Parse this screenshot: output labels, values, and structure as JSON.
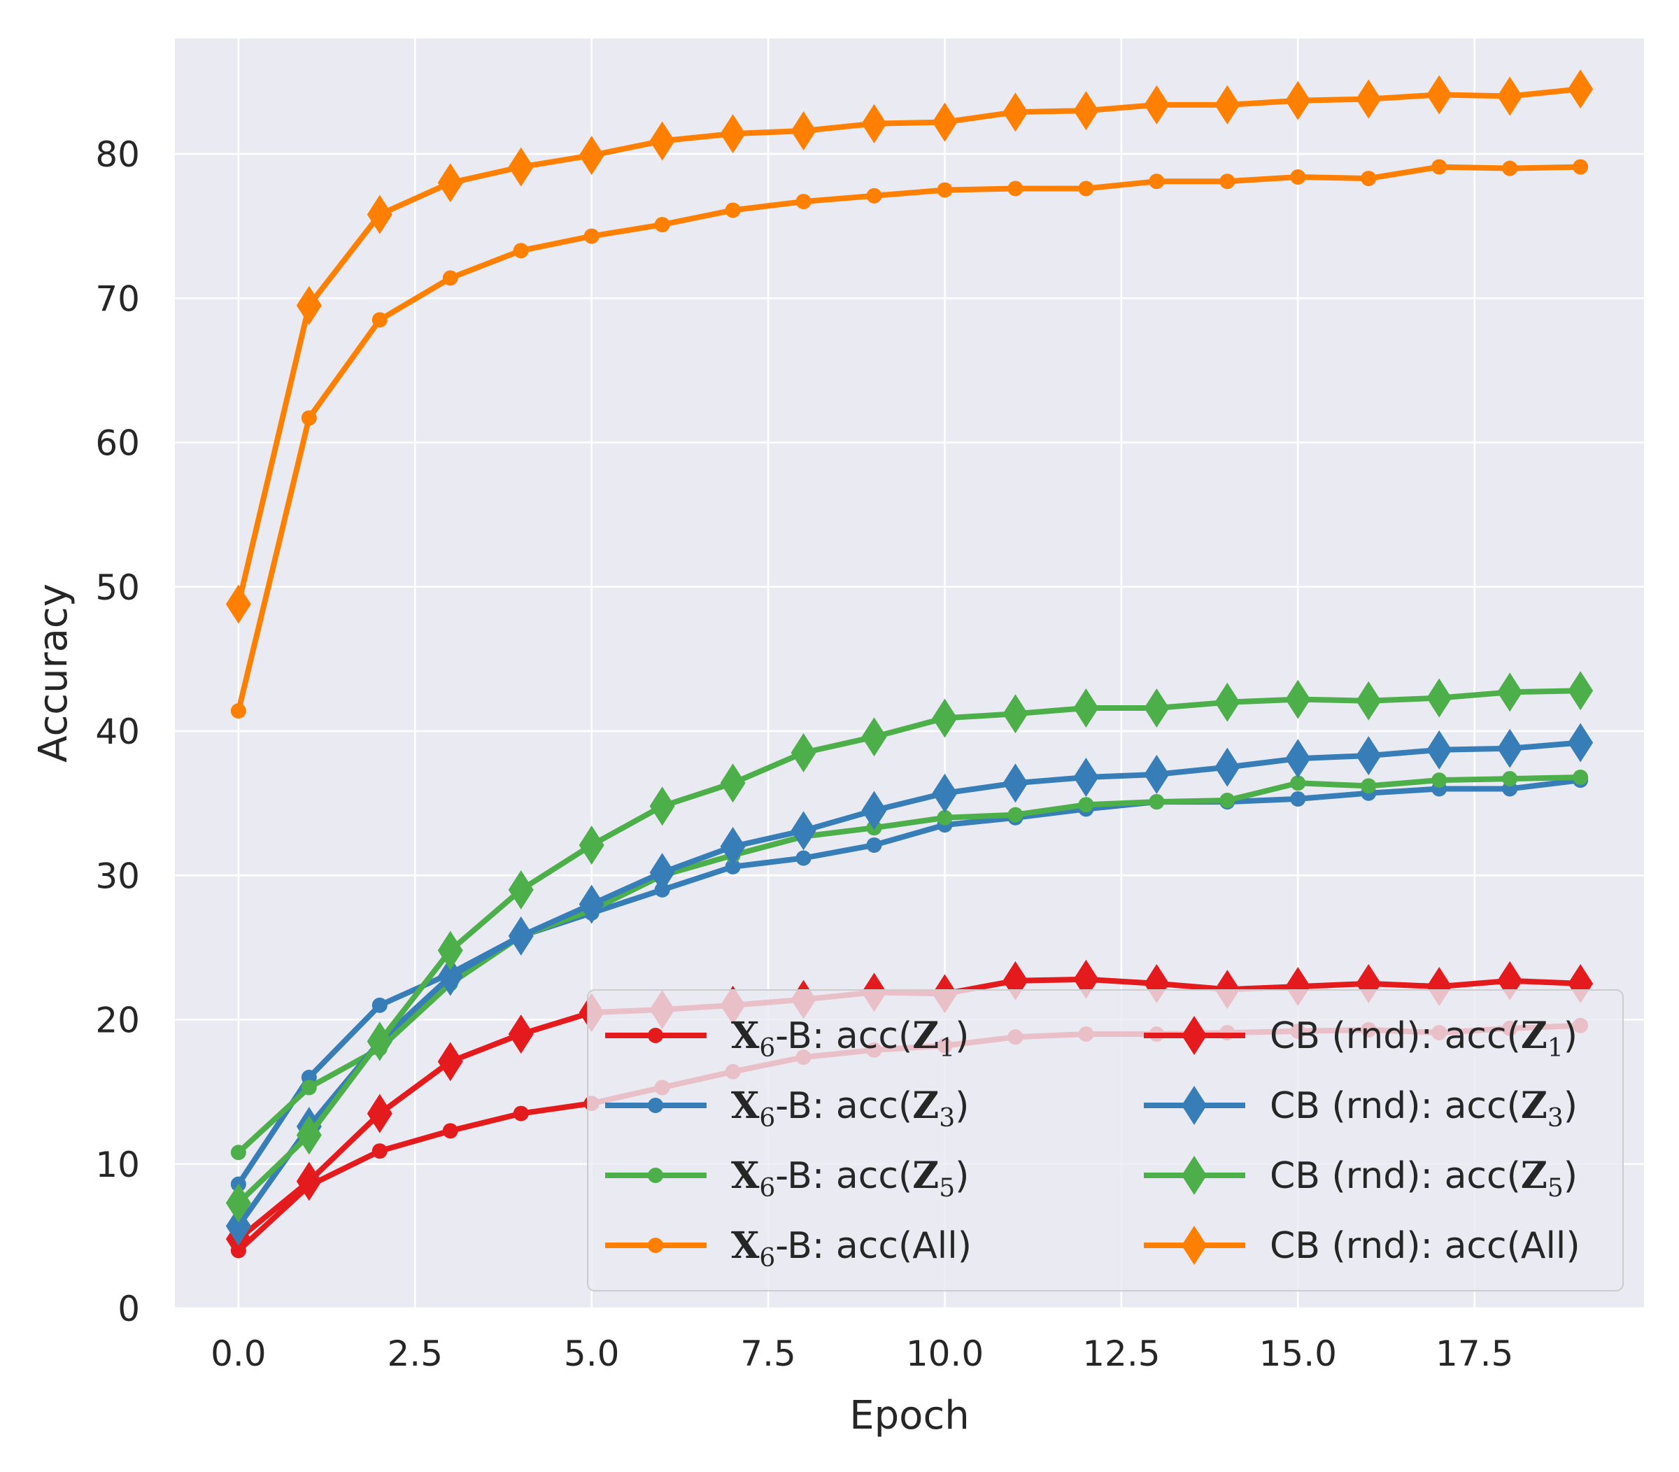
{
  "chart_data": {
    "type": "line",
    "title": "",
    "xlabel": "Epoch",
    "ylabel": "Accuracy",
    "xlim": [
      -0.9,
      19.9
    ],
    "ylim": [
      0,
      88
    ],
    "x_ticks": [
      0.0,
      2.5,
      5.0,
      7.5,
      10.0,
      12.5,
      15.0,
      17.5
    ],
    "x_tick_labels": [
      "0.0",
      "2.5",
      "5.0",
      "7.5",
      "10.0",
      "12.5",
      "15.0",
      "17.5"
    ],
    "y_ticks": [
      0,
      10,
      20,
      30,
      40,
      50,
      60,
      70,
      80
    ],
    "y_tick_labels": [
      "0",
      "10",
      "20",
      "30",
      "40",
      "50",
      "60",
      "70",
      "80"
    ],
    "grid": true,
    "legend_position": "lower-right",
    "x": [
      0,
      1,
      2,
      3,
      4,
      5,
      6,
      7,
      8,
      9,
      10,
      11,
      12,
      13,
      14,
      15,
      16,
      17,
      18,
      19
    ],
    "series": [
      {
        "name": "X6-B: acc(Z1)",
        "prefix": "X",
        "sub": "6",
        "mid": "-B: acc(",
        "var": "Z",
        "vsub": "1",
        "tail": ")",
        "color": "#e41a1c",
        "marker": "circle",
        "values": [
          4.0,
          8.5,
          10.9,
          12.3,
          13.5,
          14.2,
          15.3,
          16.4,
          17.4,
          17.9,
          18.2,
          18.8,
          19.0,
          19.0,
          19.1,
          19.2,
          19.3,
          19.1,
          19.4,
          19.6
        ]
      },
      {
        "name": "X6-B: acc(Z3)",
        "prefix": "X",
        "sub": "6",
        "mid": "-B: acc(",
        "var": "Z",
        "vsub": "3",
        "tail": ")",
        "color": "#377eb8",
        "marker": "circle",
        "values": [
          8.6,
          16.0,
          21.0,
          23.2,
          25.8,
          27.4,
          29.0,
          30.6,
          31.2,
          32.1,
          33.5,
          34.0,
          34.6,
          35.1,
          35.1,
          35.3,
          35.7,
          36.0,
          36.0,
          36.6
        ]
      },
      {
        "name": "X6-B: acc(Z5)",
        "prefix": "X",
        "sub": "6",
        "mid": "-B: acc(",
        "var": "Z",
        "vsub": "5",
        "tail": ")",
        "color": "#4daf4a",
        "marker": "circle",
        "values": [
          10.8,
          15.3,
          18.0,
          22.5,
          25.8,
          27.6,
          30.0,
          31.4,
          32.7,
          33.3,
          34.0,
          34.2,
          34.9,
          35.1,
          35.2,
          36.4,
          36.2,
          36.6,
          36.7,
          36.8
        ]
      },
      {
        "name": "X6-B: acc(All)",
        "prefix": "X",
        "sub": "6",
        "mid": "-B: acc(All)",
        "var": "",
        "vsub": "",
        "tail": "",
        "color": "#ff7f00",
        "marker": "circle",
        "values": [
          41.4,
          61.7,
          68.5,
          71.4,
          73.3,
          74.3,
          75.1,
          76.1,
          76.7,
          77.1,
          77.5,
          77.6,
          77.6,
          78.1,
          78.1,
          78.4,
          78.3,
          79.1,
          79.0,
          79.1
        ]
      },
      {
        "name": "CB (rnd): acc(Z1)",
        "prefix": "",
        "sub": "",
        "mid": "CB (rnd): acc(",
        "var": "Z",
        "vsub": "1",
        "tail": ")",
        "color": "#e41a1c",
        "marker": "diamond",
        "values": [
          4.8,
          8.8,
          13.5,
          17.1,
          19.0,
          20.5,
          20.7,
          21.0,
          21.4,
          21.9,
          21.8,
          22.7,
          22.8,
          22.5,
          22.1,
          22.3,
          22.5,
          22.3,
          22.7,
          22.5
        ]
      },
      {
        "name": "CB (rnd): acc(Z3)",
        "prefix": "",
        "sub": "",
        "mid": "CB (rnd): acc(",
        "var": "Z",
        "vsub": "3",
        "tail": ")",
        "color": "#377eb8",
        "marker": "diamond",
        "values": [
          5.7,
          12.6,
          18.5,
          23.0,
          25.8,
          28.0,
          30.2,
          32.0,
          33.1,
          34.5,
          35.7,
          36.4,
          36.8,
          37.0,
          37.5,
          38.1,
          38.3,
          38.7,
          38.8,
          39.2
        ]
      },
      {
        "name": "CB (rnd): acc(Z5)",
        "prefix": "",
        "sub": "",
        "mid": "CB (rnd): acc(",
        "var": "Z",
        "vsub": "5",
        "tail": ")",
        "color": "#4daf4a",
        "marker": "diamond",
        "values": [
          7.3,
          12.0,
          18.5,
          24.8,
          29.0,
          32.1,
          34.8,
          36.4,
          38.5,
          39.6,
          40.9,
          41.2,
          41.6,
          41.6,
          42.0,
          42.2,
          42.1,
          42.3,
          42.7,
          42.8
        ]
      },
      {
        "name": "CB (rnd): acc(All)",
        "prefix": "",
        "sub": "",
        "mid": "CB (rnd): acc(All)",
        "var": "",
        "vsub": "",
        "tail": "",
        "color": "#ff7f00",
        "marker": "diamond",
        "values": [
          48.8,
          69.5,
          75.8,
          78.0,
          79.1,
          79.9,
          80.9,
          81.4,
          81.6,
          82.1,
          82.2,
          82.9,
          83.0,
          83.4,
          83.4,
          83.7,
          83.8,
          84.1,
          84.0,
          84.5
        ]
      }
    ]
  }
}
